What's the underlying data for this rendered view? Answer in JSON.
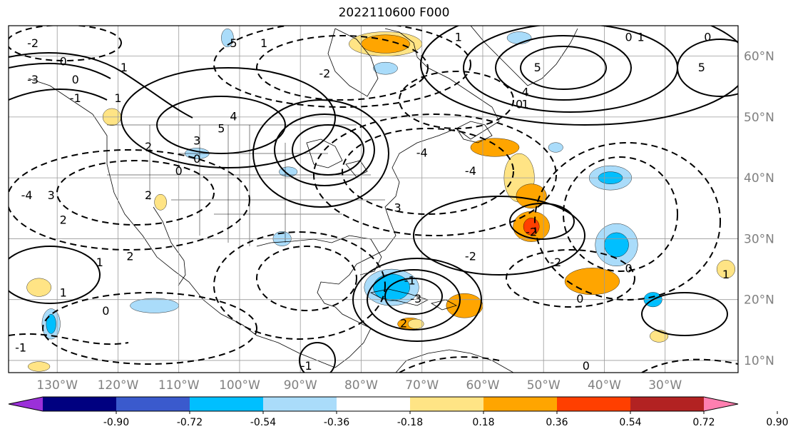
{
  "title": "2022110600 F000",
  "map": {
    "projection": "cylindrical",
    "extent": {
      "lon_min": -138,
      "lon_max": -18,
      "lat_min": 8,
      "lat_max": 65
    },
    "lon_ticks": [
      {
        "value": -130,
        "label": "130°W"
      },
      {
        "value": -120,
        "label": "120°W"
      },
      {
        "value": -110,
        "label": "110°W"
      },
      {
        "value": -100,
        "label": "100°W"
      },
      {
        "value": -90,
        "label": "90°W"
      },
      {
        "value": -80,
        "label": "80°W"
      },
      {
        "value": -70,
        "label": "70°W"
      },
      {
        "value": -60,
        "label": "60°W"
      },
      {
        "value": -50,
        "label": "50°W"
      },
      {
        "value": -40,
        "label": "40°W"
      },
      {
        "value": -30,
        "label": "30°W"
      }
    ],
    "lat_ticks": [
      {
        "value": 10,
        "label": "10°N"
      },
      {
        "value": 20,
        "label": "20°N"
      },
      {
        "value": 30,
        "label": "30°N"
      },
      {
        "value": 40,
        "label": "40°N"
      },
      {
        "value": 50,
        "label": "50°N"
      },
      {
        "value": 60,
        "label": "60°N"
      }
    ],
    "grid": true,
    "axis_label_color": "#808080"
  },
  "contour_labels": [
    {
      "text": "-2",
      "lon": -134,
      "lat": 62
    },
    {
      "text": "0",
      "lon": -129,
      "lat": 59
    },
    {
      "text": "1",
      "lon": -119,
      "lat": 58
    },
    {
      "text": "5",
      "lon": -101,
      "lat": 62
    },
    {
      "text": "1",
      "lon": -96,
      "lat": 62
    },
    {
      "text": "-3",
      "lon": -134,
      "lat": 56
    },
    {
      "text": "0",
      "lon": -127,
      "lat": 56
    },
    {
      "text": "1",
      "lon": -120,
      "lat": 53
    },
    {
      "text": "-1",
      "lon": -127,
      "lat": 53
    },
    {
      "text": "4",
      "lon": -101,
      "lat": 50
    },
    {
      "text": "5",
      "lon": -103,
      "lat": 48
    },
    {
      "text": "3",
      "lon": -107,
      "lat": 46
    },
    {
      "text": "2",
      "lon": -115,
      "lat": 45
    },
    {
      "text": "0",
      "lon": -107,
      "lat": 43
    },
    {
      "text": "0",
      "lon": -110,
      "lat": 41
    },
    {
      "text": "2",
      "lon": -115,
      "lat": 37
    },
    {
      "text": "-2",
      "lon": -86,
      "lat": 57
    },
    {
      "text": "-4",
      "lon": -135,
      "lat": 37
    },
    {
      "text": "3",
      "lon": -131,
      "lat": 37
    },
    {
      "text": "2",
      "lon": -129,
      "lat": 33
    },
    {
      "text": "2",
      "lon": -118,
      "lat": 27
    },
    {
      "text": "1",
      "lon": -123,
      "lat": 26
    },
    {
      "text": "1",
      "lon": -129,
      "lat": 21
    },
    {
      "text": "0",
      "lon": -122,
      "lat": 18
    },
    {
      "text": "-1",
      "lon": -136,
      "lat": 12
    },
    {
      "text": "1",
      "lon": -64,
      "lat": 63
    },
    {
      "text": "0",
      "lon": -36,
      "lat": 63
    },
    {
      "text": "1",
      "lon": -34,
      "lat": 63
    },
    {
      "text": "0",
      "lon": -23,
      "lat": 63
    },
    {
      "text": "5",
      "lon": -51,
      "lat": 58
    },
    {
      "text": "4",
      "lon": -53,
      "lat": 54
    },
    {
      "text": "0",
      "lon": -54,
      "lat": 52
    },
    {
      "text": "1",
      "lon": -53,
      "lat": 52
    },
    {
      "text": "5",
      "lon": -24,
      "lat": 58
    },
    {
      "text": "-4",
      "lon": -70,
      "lat": 44
    },
    {
      "text": "-4",
      "lon": -62,
      "lat": 41
    },
    {
      "text": "3",
      "lon": -74,
      "lat": 35
    },
    {
      "text": "-2",
      "lon": -52,
      "lat": 31
    },
    {
      "text": "-2",
      "lon": -62,
      "lat": 27
    },
    {
      "text": "-2",
      "lon": -48,
      "lat": 26
    },
    {
      "text": "-1",
      "lon": -72,
      "lat": 23
    },
    {
      "text": "-3",
      "lon": -71,
      "lat": 20
    },
    {
      "text": "2",
      "lon": -73,
      "lat": 16
    },
    {
      "text": "0",
      "lon": -44,
      "lat": 20
    },
    {
      "text": "0",
      "lon": -36,
      "lat": 25
    },
    {
      "text": "1",
      "lon": -20,
      "lat": 24
    },
    {
      "text": "0",
      "lon": -43,
      "lat": 9
    },
    {
      "text": "-1",
      "lon": -89,
      "lat": 9
    }
  ],
  "colorbar": {
    "extend": "both",
    "colors": [
      "#9b30d9",
      "#000080",
      "#3a5acd",
      "#00bfff",
      "#aadcfa",
      "#ffffff",
      "#ffe485",
      "#ffa500",
      "#ff3f00",
      "#b22222",
      "#ff7fb0"
    ],
    "tick_labels": [
      "-0.90",
      "-0.72",
      "-0.54",
      "-0.36",
      "-0.18",
      "0.18",
      "0.36",
      "0.54",
      "0.72",
      "0.90"
    ]
  },
  "shaded_areas": [
    {
      "lon": -76,
      "lat": 62,
      "rlon": 4,
      "rlat": 1.5,
      "color": "#ffa500"
    },
    {
      "lon": -76,
      "lat": 62,
      "rlon": 6,
      "rlat": 2,
      "color": "#ffe485"
    },
    {
      "lon": -58,
      "lat": 45,
      "rlon": 4,
      "rlat": 1.5,
      "color": "#ffa500"
    },
    {
      "lon": -54,
      "lat": 40,
      "rlon": 2.5,
      "rlat": 4,
      "color": "#ffe485"
    },
    {
      "lon": -52,
      "lat": 37,
      "rlon": 2.5,
      "rlat": 2,
      "color": "#ffa500"
    },
    {
      "lon": -52,
      "lat": 32,
      "rlon": 3,
      "rlat": 2.5,
      "color": "#ffa500"
    },
    {
      "lon": -52,
      "lat": 32,
      "rlon": 1.3,
      "rlat": 1.4,
      "color": "#ff3f00"
    },
    {
      "lon": -42,
      "lat": 23,
      "rlon": 4.5,
      "rlat": 2.2,
      "color": "#ffa500"
    },
    {
      "lon": -63,
      "lat": 19,
      "rlon": 3,
      "rlat": 2,
      "color": "#ffa500"
    },
    {
      "lon": -72,
      "lat": 16,
      "rlon": 2,
      "rlat": 1,
      "color": "#ffa500"
    },
    {
      "lon": -75,
      "lat": 22,
      "rlon": 3,
      "rlat": 2.2,
      "color": "#00bfff"
    },
    {
      "lon": -75,
      "lat": 22,
      "rlon": 4.5,
      "rlat": 3,
      "color": "#aadcfa"
    },
    {
      "lon": -38,
      "lat": 29,
      "rlon": 3.5,
      "rlat": 3.5,
      "color": "#aadcfa"
    },
    {
      "lon": -38,
      "lat": 29,
      "rlon": 2,
      "rlat": 2,
      "color": "#00bfff"
    },
    {
      "lon": -39,
      "lat": 40,
      "rlon": 3.5,
      "rlat": 2,
      "color": "#aadcfa"
    },
    {
      "lon": -39,
      "lat": 40,
      "rlon": 2,
      "rlat": 1,
      "color": "#00bfff"
    },
    {
      "lon": -32,
      "lat": 20,
      "rlon": 1.5,
      "rlat": 1.2,
      "color": "#00bfff"
    },
    {
      "lon": -131,
      "lat": 16,
      "rlon": 1.5,
      "rlat": 2.5,
      "color": "#aadcfa"
    },
    {
      "lon": -131,
      "lat": 16,
      "rlon": 0.8,
      "rlat": 1.6,
      "color": "#00bfff"
    },
    {
      "lon": -114,
      "lat": 19,
      "rlon": 4,
      "rlat": 1.2,
      "color": "#aadcfa"
    },
    {
      "lon": -107,
      "lat": 44,
      "rlon": 2,
      "rlat": 0.9,
      "color": "#aadcfa"
    },
    {
      "lon": -92,
      "lat": 41,
      "rlon": 1.5,
      "rlat": 0.8,
      "color": "#aadcfa"
    },
    {
      "lon": -93,
      "lat": 30,
      "rlon": 1.5,
      "rlat": 1.2,
      "color": "#aadcfa"
    },
    {
      "lon": -102,
      "lat": 63,
      "rlon": 1,
      "rlat": 1.5,
      "color": "#aadcfa"
    },
    {
      "lon": -54,
      "lat": 63,
      "rlon": 2,
      "rlat": 1,
      "color": "#aadcfa"
    },
    {
      "lon": -76,
      "lat": 58,
      "rlon": 2,
      "rlat": 1,
      "color": "#aadcfa"
    },
    {
      "lon": -48,
      "lat": 45,
      "rlon": 1.2,
      "rlat": 0.8,
      "color": "#aadcfa"
    },
    {
      "lon": -121,
      "lat": 50,
      "rlon": 1.5,
      "rlat": 1.4,
      "color": "#ffe485"
    },
    {
      "lon": -113,
      "lat": 36,
      "rlon": 1,
      "rlat": 1.3,
      "color": "#ffe485"
    },
    {
      "lon": -133,
      "lat": 22,
      "rlon": 2,
      "rlat": 1.5,
      "color": "#ffe485"
    },
    {
      "lon": -20,
      "lat": 25,
      "rlon": 1.5,
      "rlat": 1.5,
      "color": "#ffe485"
    },
    {
      "lon": -133,
      "lat": 9,
      "rlon": 1.8,
      "rlat": 0.8,
      "color": "#ffe485"
    },
    {
      "lon": -71,
      "lat": 16,
      "rlon": 1.3,
      "rlat": 0.8,
      "color": "#ffe485"
    },
    {
      "lon": -31,
      "lat": 14,
      "rlon": 1.5,
      "rlat": 1,
      "color": "#ffe485"
    }
  ]
}
